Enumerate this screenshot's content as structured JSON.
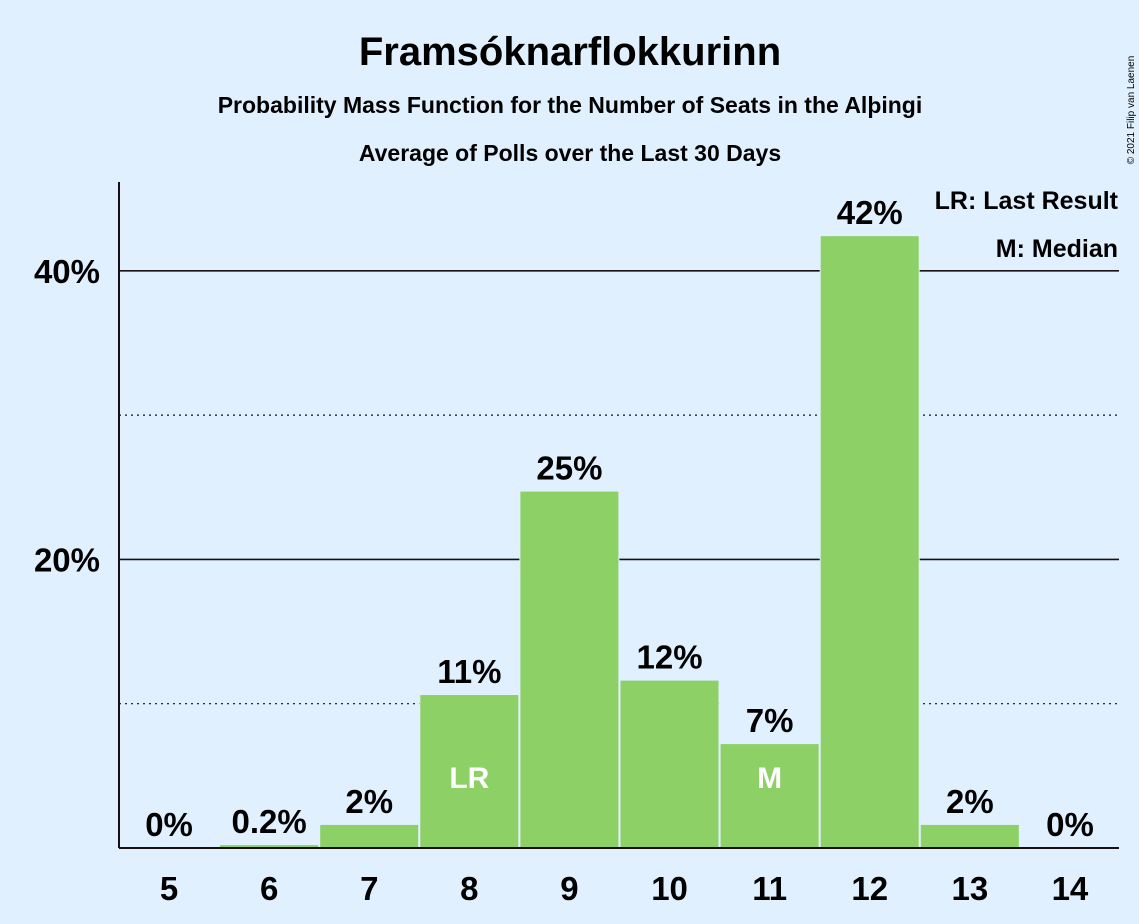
{
  "copyright": "© 2021 Filip van Laenen",
  "colors": {
    "background": "#e1f0fe",
    "bar": "#8cd066",
    "text": "#1a0f14",
    "inner_label": "#ffffff"
  },
  "chart_data": {
    "type": "bar",
    "title": "Framsóknarflokkurinn",
    "subtitle": "Probability Mass Function for the Number of Seats in the Alþingi",
    "subtitle2": "Average of Polls over the Last 30 Days",
    "categories": [
      "5",
      "6",
      "7",
      "8",
      "9",
      "10",
      "11",
      "12",
      "13",
      "14"
    ],
    "values": [
      0,
      0.2,
      1.6,
      10.6,
      24.7,
      11.6,
      7.2,
      42.4,
      1.6,
      0
    ],
    "data_labels": [
      "0%",
      "0.2%",
      "2%",
      "11%",
      "25%",
      "12%",
      "7%",
      "42%",
      "2%",
      "0%"
    ],
    "bar_markers": {
      "8": "LR",
      "11": "M"
    },
    "ylim": [
      0,
      46
    ],
    "yticks": [
      {
        "value": 20,
        "label": "20%"
      },
      {
        "value": 40,
        "label": "40%"
      }
    ],
    "minor_grid": [
      10,
      30
    ],
    "legend": [
      "LR: Last Result",
      "M: Median"
    ],
    "legend_position": "top-right",
    "grid": true
  }
}
